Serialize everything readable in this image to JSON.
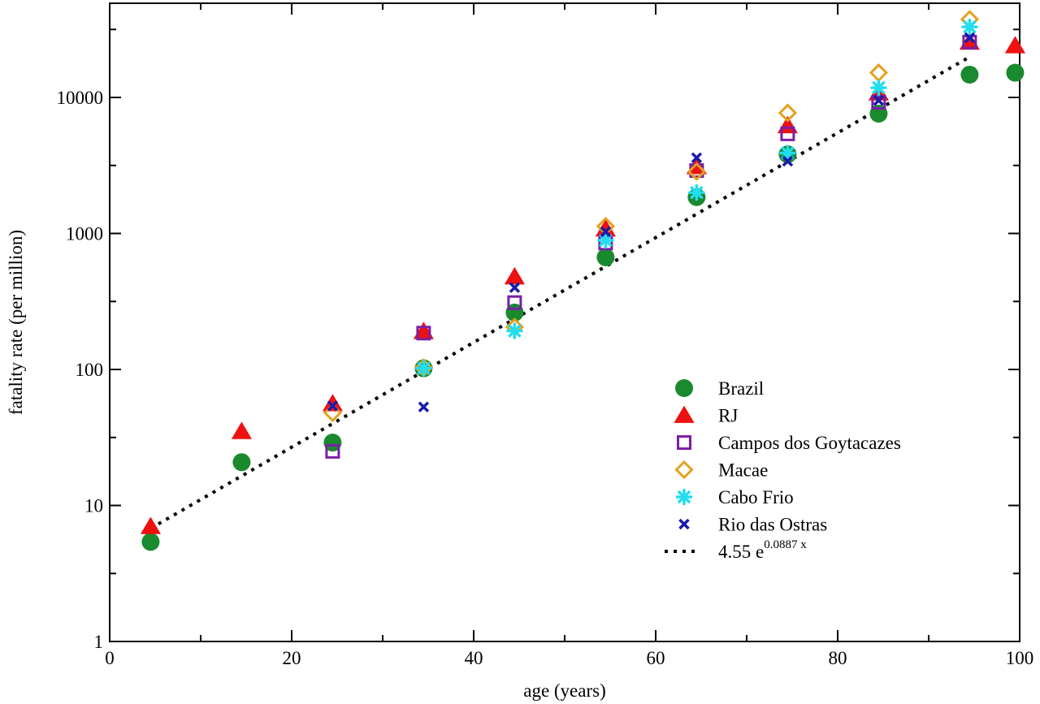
{
  "chart_data": {
    "type": "scatter",
    "xlabel": "age (years)",
    "ylabel": "fatality rate (per million)",
    "xlim": [
      0,
      100
    ],
    "ylim": [
      1,
      50000
    ],
    "yscale": "log",
    "x_ticks": [
      0,
      20,
      40,
      60,
      80,
      100
    ],
    "y_ticks": [
      1,
      10,
      100,
      1000,
      10000
    ],
    "y_tick_labels": [
      "1",
      "10",
      "100",
      "1000",
      "10000"
    ],
    "legend_position": "bottom-right",
    "series": [
      {
        "name": "Brazil",
        "marker": "circle",
        "color": "#1a8a2e",
        "x": [
          4.5,
          14.5,
          24.5,
          34.5,
          44.5,
          54.5,
          64.5,
          74.5,
          84.5,
          94.5,
          99.5
        ],
        "y": [
          5.4,
          20.8,
          29,
          102,
          262,
          668,
          1850,
          3820,
          7600,
          14700,
          15200
        ]
      },
      {
        "name": "RJ",
        "marker": "triangle",
        "color": "#ee1111",
        "x": [
          4.5,
          14.5,
          24.5,
          34.5,
          44.5,
          54.5,
          64.5,
          74.5,
          84.5,
          94.5,
          99.5
        ],
        "y": [
          7,
          35,
          56,
          190,
          480,
          1080,
          3100,
          6200,
          10800,
          25500,
          24000
        ]
      },
      {
        "name": "Campos dos Goytacazes",
        "marker": "square",
        "color": "#7a1fa8",
        "x": [
          24.5,
          34.5,
          44.5,
          54.5,
          64.5,
          74.5,
          84.5,
          94.5
        ],
        "y": [
          25,
          185,
          310,
          850,
          2900,
          5400,
          9200,
          25500
        ]
      },
      {
        "name": "Macae",
        "marker": "diamond",
        "color": "#e6a01e",
        "x": [
          24.5,
          34.5,
          44.5,
          54.5,
          64.5,
          74.5,
          84.5,
          94.5
        ],
        "y": [
          48,
          103,
          205,
          1130,
          2850,
          7700,
          15200,
          37500
        ]
      },
      {
        "name": "Cabo Frio",
        "marker": "star",
        "color": "#22ddee",
        "x": [
          34.5,
          44.5,
          54.5,
          64.5,
          74.5,
          84.5,
          94.5
        ],
        "y": [
          102,
          192,
          890,
          2000,
          3900,
          11800,
          33000
        ]
      },
      {
        "name": "Rio das Ostras",
        "marker": "x",
        "color": "#1a1aaa",
        "x": [
          24.5,
          34.5,
          44.5,
          54.5,
          64.5,
          74.5,
          84.5,
          94.5
        ],
        "y": [
          54,
          53,
          400,
          1030,
          3600,
          3400,
          9500,
          27500
        ]
      }
    ],
    "fit": {
      "name_base": "4.55 e",
      "name_exponent": "0.0887 x",
      "a": 4.55,
      "b": 0.0887,
      "x_range": [
        4.5,
        94.5
      ],
      "style": "dotted",
      "color": "#000000"
    }
  }
}
